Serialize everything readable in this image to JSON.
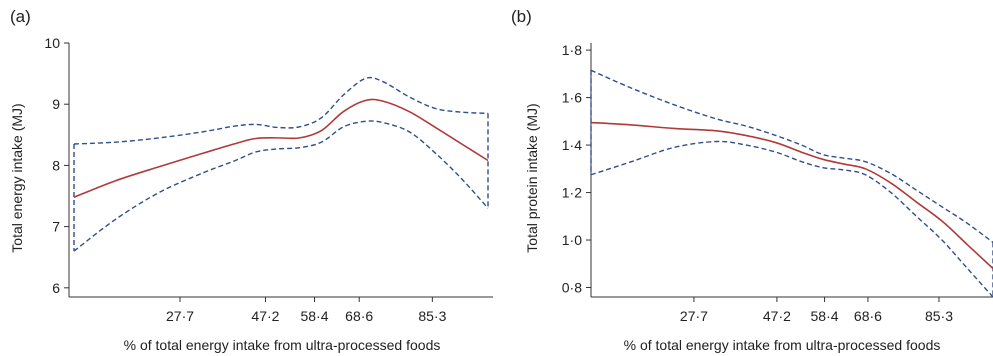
{
  "panels": [
    {
      "label": "(a)",
      "ylabel": "Total energy intake (MJ)",
      "xlabel": "% of total energy intake from ultra-processed foods",
      "yticks": [
        "6",
        "7",
        "8",
        "9",
        "10"
      ],
      "xticks": [
        "27·7",
        "47·2",
        "58·4",
        "68·6",
        "85·3"
      ]
    },
    {
      "label": "(b)",
      "ylabel": "Total protein intake (MJ)",
      "xlabel": "% of total energy intake from ultra-processed foods",
      "yticks": [
        "0·8",
        "1·0",
        "1·2",
        "1·4",
        "1·6",
        "1·8"
      ],
      "xticks": [
        "27·7",
        "47·2",
        "58·4",
        "68·6",
        "85·3"
      ]
    }
  ],
  "colors": {
    "fit": "#b03a3a",
    "ci": "#2f4e8c",
    "axis": "#333333"
  },
  "chart_data": [
    {
      "type": "line",
      "title": "",
      "xlabel": "% of total energy intake from ultra-processed foods",
      "ylabel": "Total energy intake (MJ)",
      "xlim": [
        3.5,
        98
      ],
      "ylim": [
        5.85,
        10
      ],
      "x_ticks": [
        27.7,
        47.2,
        58.4,
        68.6,
        85.3
      ],
      "y_ticks": [
        6,
        7,
        8,
        9,
        10
      ],
      "grid": false,
      "series": [
        {
          "role": "fit",
          "style": "solid",
          "x": [
            3.5,
            13,
            23,
            33,
            40,
            45,
            50,
            55,
            60,
            65,
            70,
            74,
            80,
            86,
            92,
            98
          ],
          "y": [
            7.48,
            7.75,
            7.98,
            8.2,
            8.35,
            8.44,
            8.45,
            8.45,
            8.57,
            8.88,
            9.06,
            9.05,
            8.88,
            8.62,
            8.35,
            8.08
          ]
        },
        {
          "role": "ci-upper",
          "style": "dashed",
          "x": [
            3.5,
            13,
            23,
            33,
            40,
            45,
            50,
            55,
            60,
            65,
            70,
            74,
            80,
            86,
            92,
            98
          ],
          "y": [
            8.35,
            8.38,
            8.45,
            8.55,
            8.64,
            8.67,
            8.62,
            8.63,
            8.78,
            9.15,
            9.42,
            9.37,
            9.12,
            8.93,
            8.87,
            8.85
          ]
        },
        {
          "role": "ci-lower",
          "style": "dashed",
          "x": [
            3.5,
            13,
            23,
            33,
            40,
            45,
            50,
            55,
            60,
            65,
            70,
            74,
            80,
            86,
            92,
            98
          ],
          "y": [
            6.6,
            7.12,
            7.56,
            7.88,
            8.07,
            8.22,
            8.27,
            8.29,
            8.38,
            8.63,
            8.72,
            8.7,
            8.55,
            8.2,
            7.78,
            7.3
          ]
        }
      ]
    },
    {
      "type": "line",
      "title": "",
      "xlabel": "% of total energy intake from ultra-processed foods",
      "ylabel": "Total protein intake (MJ)",
      "xlim": [
        3.5,
        98
      ],
      "ylim": [
        0.76,
        1.83
      ],
      "x_ticks": [
        27.7,
        47.2,
        58.4,
        68.6,
        85.3
      ],
      "y_ticks": [
        0.8,
        1.0,
        1.2,
        1.4,
        1.6,
        1.8
      ],
      "grid": false,
      "series": [
        {
          "role": "fit",
          "style": "solid",
          "x": [
            3.5,
            13,
            23,
            33,
            40,
            47,
            53,
            58,
            63,
            68,
            74,
            80,
            86,
            92,
            98
          ],
          "y": [
            1.495,
            1.485,
            1.47,
            1.46,
            1.44,
            1.41,
            1.37,
            1.34,
            1.32,
            1.3,
            1.24,
            1.16,
            1.08,
            0.98,
            0.88
          ]
        },
        {
          "role": "ci-upper",
          "style": "dashed",
          "x": [
            3.5,
            13,
            23,
            33,
            40,
            47,
            53,
            58,
            63,
            68,
            74,
            80,
            86,
            92,
            98
          ],
          "y": [
            1.715,
            1.64,
            1.57,
            1.51,
            1.48,
            1.44,
            1.4,
            1.36,
            1.345,
            1.33,
            1.28,
            1.21,
            1.14,
            1.07,
            0.99
          ]
        },
        {
          "role": "ci-lower",
          "style": "dashed",
          "x": [
            3.5,
            13,
            23,
            33,
            40,
            47,
            53,
            58,
            63,
            68,
            74,
            80,
            86,
            92,
            98
          ],
          "y": [
            1.275,
            1.33,
            1.39,
            1.415,
            1.4,
            1.37,
            1.33,
            1.305,
            1.295,
            1.275,
            1.2,
            1.1,
            1.0,
            0.88,
            0.76
          ]
        }
      ]
    }
  ]
}
